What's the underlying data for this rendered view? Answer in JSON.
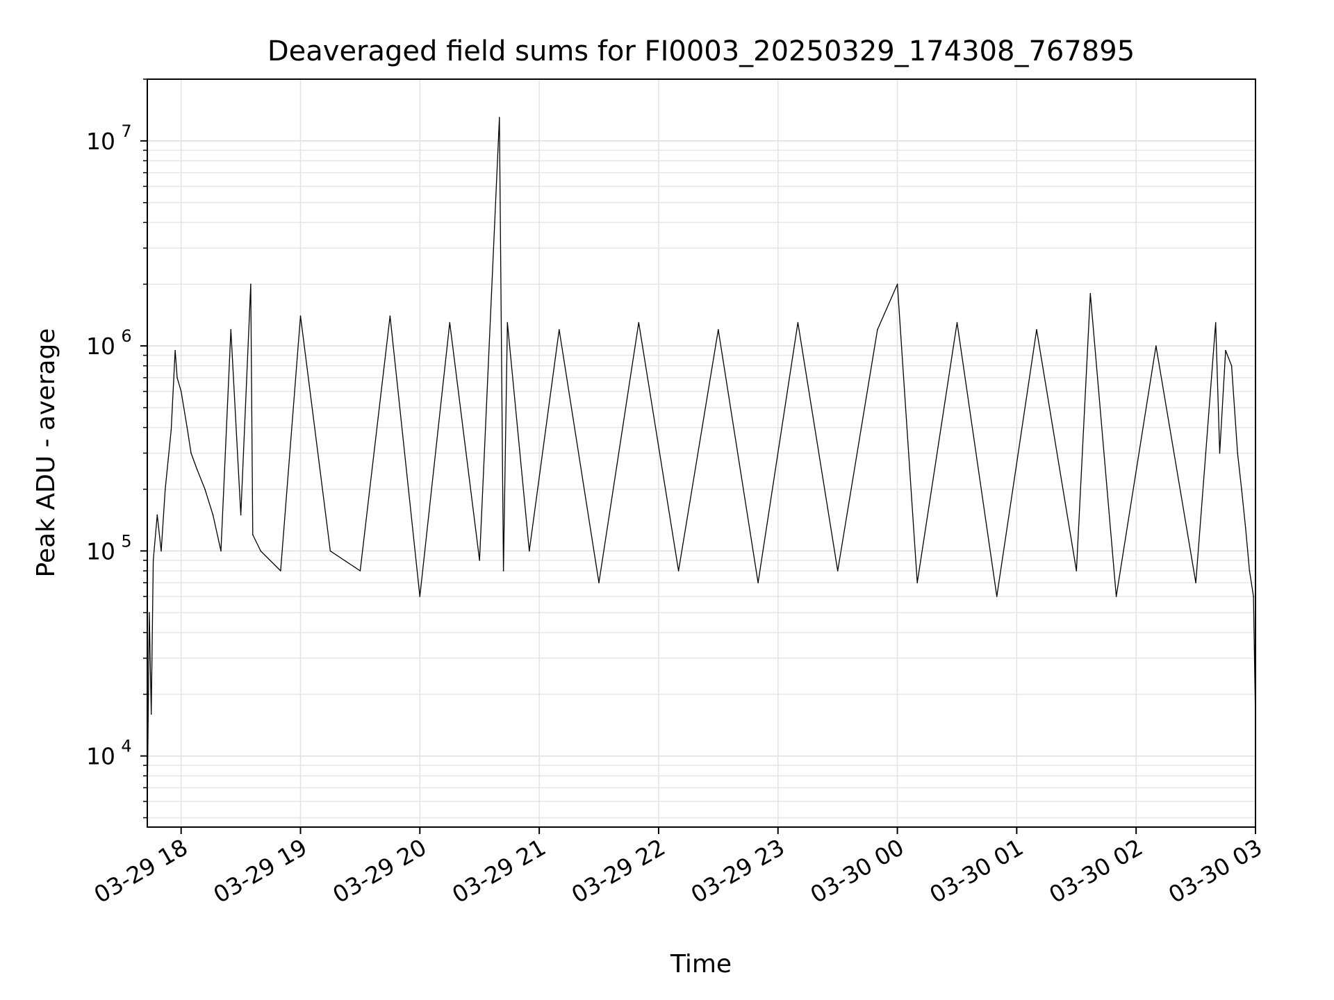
{
  "chart_data": {
    "type": "line",
    "title": "Deaveraged field sums for FI0003_20250329_174308_767895",
    "xlabel": "Time",
    "ylabel": "Peak ADU - average",
    "yscale": "log",
    "ylim": [
      4500,
      20000000
    ],
    "xlim": [
      "2025-03-29 17:43",
      "2025-03-30 03:00"
    ],
    "x_ticks": [
      "03-29 18",
      "03-29 19",
      "03-29 20",
      "03-29 21",
      "03-29 22",
      "03-29 23",
      "03-30 00",
      "03-30 01",
      "03-30 02",
      "03-30 03"
    ],
    "y_ticks": [
      {
        "value": 10000,
        "base": "10",
        "exp": "4"
      },
      {
        "value": 100000,
        "base": "10",
        "exp": "5"
      },
      {
        "value": 1000000,
        "base": "10",
        "exp": "6"
      },
      {
        "value": 10000000,
        "base": "10",
        "exp": "7"
      }
    ],
    "grid": true,
    "line_color": "#000000",
    "series": [
      {
        "x": [
          "2025-03-29 17:43",
          "2025-03-29 17:44",
          "2025-03-29 17:45",
          "2025-03-29 17:46",
          "2025-03-29 17:48",
          "2025-03-29 17:50",
          "2025-03-29 17:52",
          "2025-03-29 17:55",
          "2025-03-29 17:57",
          "2025-03-29 17:58",
          "2025-03-29 18:00",
          "2025-03-29 18:03",
          "2025-03-29 18:05",
          "2025-03-29 18:08",
          "2025-03-29 18:12",
          "2025-03-29 18:16",
          "2025-03-29 18:20",
          "2025-03-29 18:25",
          "2025-03-29 18:30",
          "2025-03-29 18:35",
          "2025-03-29 18:36",
          "2025-03-29 18:40",
          "2025-03-29 18:50",
          "2025-03-29 19:00",
          "2025-03-29 19:15",
          "2025-03-29 19:30",
          "2025-03-29 19:45",
          "2025-03-29 20:00",
          "2025-03-29 20:15",
          "2025-03-29 20:30",
          "2025-03-29 20:40",
          "2025-03-29 20:42",
          "2025-03-29 20:44",
          "2025-03-29 20:55",
          "2025-03-29 21:10",
          "2025-03-29 21:30",
          "2025-03-29 21:50",
          "2025-03-29 22:10",
          "2025-03-29 22:30",
          "2025-03-29 22:50",
          "2025-03-29 23:10",
          "2025-03-29 23:30",
          "2025-03-29 23:50",
          "2025-03-30 00:00",
          "2025-03-30 00:10",
          "2025-03-30 00:30",
          "2025-03-30 00:50",
          "2025-03-30 01:10",
          "2025-03-30 01:30",
          "2025-03-30 01:37",
          "2025-03-30 01:50",
          "2025-03-30 02:10",
          "2025-03-30 02:30",
          "2025-03-30 02:35",
          "2025-03-30 02:40",
          "2025-03-30 02:42",
          "2025-03-30 02:45",
          "2025-03-30 02:48",
          "2025-03-30 02:51",
          "2025-03-30 02:53",
          "2025-03-30 02:55",
          "2025-03-30 02:57",
          "2025-03-30 02:59",
          "2025-03-30 03:00"
        ],
        "y": [
          6000,
          50000,
          16000,
          90000,
          150000,
          100000,
          200000,
          390000,
          950000,
          700000,
          600000,
          400000,
          300000,
          250000,
          200000,
          150000,
          100000,
          1200000,
          150000,
          2000000,
          120000,
          100000,
          80000,
          1400000,
          100000,
          80000,
          1400000,
          60000,
          1300000,
          90000,
          13000000,
          80000,
          1300000,
          100000,
          1200000,
          70000,
          1300000,
          80000,
          1200000,
          70000,
          1300000,
          80000,
          1200000,
          2000000,
          70000,
          1300000,
          60000,
          1200000,
          80000,
          1800000,
          60000,
          1000000,
          70000,
          300000,
          1300000,
          300000,
          950000,
          800000,
          300000,
          200000,
          130000,
          80000,
          60000,
          15000
        ]
      }
    ]
  }
}
